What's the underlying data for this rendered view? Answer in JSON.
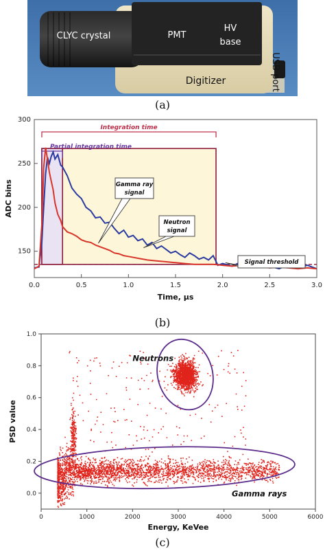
{
  "photo": {
    "labels": {
      "crystal": "CLYC crystal",
      "pmt": "PMT",
      "hv1": "HV",
      "hv2": "base",
      "usb": "USB port",
      "digitizer": "Digitizer"
    },
    "caption": "(a)"
  },
  "chart_data": [
    {
      "type": "line",
      "ylabel": "ADC bins",
      "xlabel": "Time, μs",
      "xlim": [
        0,
        3.0
      ],
      "ylim": [
        120,
        300
      ],
      "xticks": [
        "0.0",
        "0.5",
        "1.0",
        "1.5",
        "2.0",
        "2.5",
        "3.0"
      ],
      "yticks": [
        "150",
        "200",
        "250",
        "300"
      ],
      "grid": false,
      "annotations": {
        "integration_time": "Integration time",
        "partial_integration_time": "Partial integration time",
        "gamma1": "Gamma ray",
        "gamma2": "signal",
        "neutron1": "Neutron",
        "neutron2": "signal",
        "threshold": "Signal threshold"
      },
      "regions": {
        "integration_window": [
          0.08,
          1.93
        ],
        "partial_window": [
          0.08,
          0.3
        ],
        "window_top": 267,
        "threshold_value": 135
      },
      "series": [
        {
          "key": "neutron",
          "color": "#2a3aa0",
          "x": [
            0.0,
            0.05,
            0.08,
            0.1,
            0.12,
            0.14,
            0.16,
            0.18,
            0.2,
            0.22,
            0.25,
            0.28,
            0.3,
            0.35,
            0.4,
            0.45,
            0.5,
            0.55,
            0.6,
            0.65,
            0.7,
            0.75,
            0.8,
            0.85,
            0.9,
            0.95,
            1.0,
            1.05,
            1.1,
            1.15,
            1.2,
            1.25,
            1.3,
            1.35,
            1.4,
            1.45,
            1.5,
            1.55,
            1.6,
            1.65,
            1.7,
            1.75,
            1.8,
            1.85,
            1.9,
            1.95,
            2.0,
            2.1,
            2.2,
            2.3,
            2.4,
            2.5,
            2.6,
            2.7,
            2.8,
            2.9,
            3.0
          ],
          "values": [
            131,
            132,
            160,
            200,
            238,
            257,
            250,
            258,
            263,
            255,
            260,
            248,
            246,
            236,
            222,
            215,
            210,
            200,
            196,
            188,
            189,
            182,
            183,
            176,
            170,
            174,
            166,
            168,
            162,
            164,
            157,
            160,
            153,
            156,
            152,
            148,
            150,
            146,
            143,
            148,
            145,
            141,
            143,
            140,
            145,
            134,
            136,
            133,
            138,
            132,
            136,
            133,
            130,
            135,
            131,
            134,
            130
          ]
        },
        {
          "key": "gamma",
          "color": "#d8342a",
          "x": [
            0.0,
            0.05,
            0.08,
            0.1,
            0.12,
            0.14,
            0.16,
            0.18,
            0.2,
            0.22,
            0.25,
            0.28,
            0.3,
            0.35,
            0.4,
            0.45,
            0.5,
            0.55,
            0.6,
            0.65,
            0.7,
            0.75,
            0.8,
            0.85,
            0.9,
            0.95,
            1.0,
            1.1,
            1.2,
            1.3,
            1.4,
            1.5,
            1.6,
            1.7,
            1.8,
            1.9,
            2.0,
            2.1,
            2.2,
            2.3,
            2.4,
            2.5,
            2.6,
            2.7,
            2.8,
            2.9,
            3.0
          ],
          "values": [
            130,
            133,
            180,
            245,
            268,
            255,
            240,
            230,
            220,
            205,
            192,
            185,
            178,
            172,
            170,
            167,
            163,
            161,
            160,
            157,
            155,
            153,
            151,
            148,
            147,
            145,
            144,
            142,
            140,
            139,
            138,
            137,
            136,
            135,
            135,
            135,
            134,
            133,
            134,
            132,
            133,
            131,
            132,
            131,
            130,
            131,
            130
          ]
        }
      ],
      "caption": "(b)"
    },
    {
      "type": "scatter",
      "ylabel": "PSD value",
      "xlabel": "Energy, KeVee",
      "xlim": [
        0,
        6000
      ],
      "ylim": [
        -0.1,
        1.0
      ],
      "xticks": [
        "0",
        "1000",
        "2000",
        "3000",
        "4000",
        "5000",
        "6000"
      ],
      "yticks": [
        "0.0",
        "0.2",
        "0.4",
        "0.6",
        "0.8",
        "1.0"
      ],
      "grid": false,
      "annotations": {
        "neutrons": "Neutrons",
        "gamma": "Gamma rays"
      },
      "clusters": [
        {
          "name_key": "neutrons",
          "center": [
            3150,
            0.74
          ],
          "spread": [
            170,
            0.06
          ],
          "count": 1500
        },
        {
          "name_key": "gamma",
          "band": [
            350,
            5200
          ],
          "center_y": 0.14,
          "spread_y": 0.05,
          "count": 2800
        },
        {
          "name_key": "spike",
          "center": [
            700,
            0.35
          ],
          "spread": [
            40,
            0.12
          ],
          "count": 180
        },
        {
          "name_key": "sparse",
          "range_x": [
            600,
            4500
          ],
          "range_y": [
            0.2,
            0.9
          ],
          "count": 220
        }
      ],
      "caption": "(c)"
    }
  ]
}
